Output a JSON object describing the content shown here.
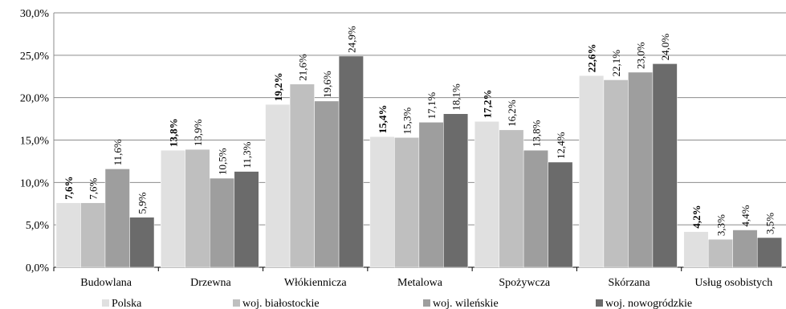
{
  "chart_data": {
    "type": "bar",
    "categories": [
      "Budowlana",
      "Drzewna",
      "Włókiennicza",
      "Metalowa",
      "Spożywcza",
      "Skórzana",
      "Usług osobistych"
    ],
    "series": [
      {
        "name": "Polska",
        "color": "#e0e0e0",
        "values": [
          7.6,
          13.8,
          19.2,
          15.4,
          17.2,
          22.6,
          4.2
        ],
        "labels": [
          "7,6%",
          "13,8%",
          "19,2%",
          "15,4%",
          "17,2%",
          "22,6%",
          "4,2%"
        ]
      },
      {
        "name": "woj. białostockie",
        "color": "#bfbfbf",
        "values": [
          7.6,
          13.9,
          21.6,
          15.3,
          16.2,
          22.1,
          3.3
        ],
        "labels": [
          "7,6%",
          "13,9%",
          "21,6%",
          "15,3%",
          "16,2%",
          "22,1%",
          "3,3%"
        ]
      },
      {
        "name": "woj. wileńskie",
        "color": "#9e9e9e",
        "values": [
          11.6,
          10.5,
          19.6,
          17.1,
          13.8,
          23.0,
          4.4
        ],
        "labels": [
          "11,6%",
          "10,5%",
          "19,6%",
          "17,1%",
          "13,8%",
          "23,0%",
          "4,4%"
        ]
      },
      {
        "name": "woj. nowogródzkie",
        "color": "#6b6b6b",
        "values": [
          5.9,
          11.3,
          24.9,
          18.1,
          12.4,
          24.0,
          3.5
        ],
        "labels": [
          "5,9%",
          "11,3%",
          "24,9%",
          "18,1%",
          "12,4%",
          "24,0%",
          "3,5%"
        ]
      }
    ],
    "ylim": [
      0,
      30
    ],
    "yticks": [
      0,
      5,
      10,
      15,
      20,
      25,
      30
    ],
    "ytick_labels": [
      "0,0%",
      "5,0%",
      "10,0%",
      "15,0%",
      "20,0%",
      "25,0%",
      "30,0%"
    ],
    "grid": true,
    "legend_position": "bottom",
    "title": "",
    "xlabel": "",
    "ylabel": ""
  }
}
